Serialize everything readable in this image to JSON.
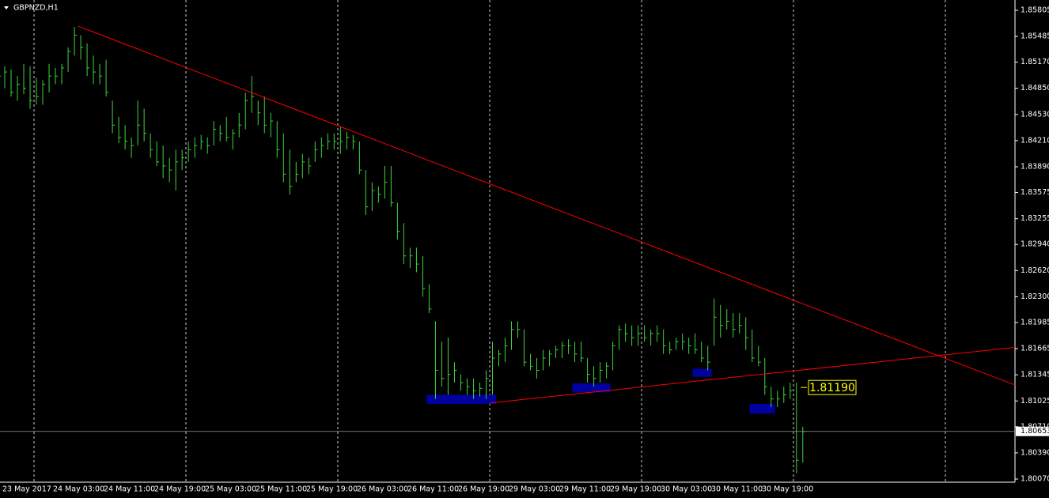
{
  "chart_data": {
    "type": "ohlc",
    "title": "GBPNZD,H1",
    "bar_color": "#3fd43f",
    "background": "#000000",
    "axis_color": "#ffffff",
    "ylim": [
      1.8007,
      1.85805
    ],
    "xlim": [
      0.25,
      160.5
    ],
    "yticks": [
      1.85805,
      1.85485,
      {
        "value": 1.8517,
        "label": "1.85170"
      },
      {
        "value": 1.8485,
        "label": "1.84850"
      },
      {
        "value": 1.8453,
        "label": "1.84530"
      },
      {
        "value": 1.8421,
        "label": "1.84210"
      },
      {
        "value": 1.8389,
        "label": "1.83890"
      },
      1.83575,
      1.83255,
      {
        "value": 1.8294,
        "label": "1.82940"
      },
      {
        "value": 1.8262,
        "label": "1.82620"
      },
      {
        "value": 1.823,
        "label": "1.82300"
      },
      1.81985,
      1.81665,
      1.81345,
      1.81025,
      {
        "value": 1.8071,
        "label": "1.80710"
      },
      {
        "value": 1.8039,
        "label": "1.80390"
      },
      {
        "value": 1.8007,
        "label": "1.80070"
      }
    ],
    "x_labels": [
      "23 May 2017",
      "24 May 03:00",
      "24 May 11:00",
      "24 May 19:00",
      "25 May 03:00",
      "25 May 11:00",
      "25 May 19:00",
      "26 May 03:00",
      "26 May 11:00",
      "26 May 19:00",
      "29 May 03:00",
      "29 May 11:00",
      "29 May 19:00",
      "30 May 03:00",
      "30 May 11:00",
      "30 May 19:00"
    ],
    "bars": [
      [
        1.8515,
        1.849,
        1.85
      ],
      [
        1.8512,
        1.8485,
        1.8505
      ],
      [
        1.8508,
        1.8475,
        1.848
      ],
      [
        1.85,
        1.847,
        1.849
      ],
      [
        1.8515,
        1.8478,
        1.8485
      ],
      [
        1.8512,
        1.846,
        1.847
      ],
      [
        1.8498,
        1.8465,
        1.8475
      ],
      [
        1.8495,
        1.8465,
        1.849
      ],
      [
        1.8515,
        1.848,
        1.85
      ],
      [
        1.851,
        1.849,
        1.85
      ],
      [
        1.8515,
        1.849,
        1.851
      ],
      [
        1.8535,
        1.8505,
        1.853
      ],
      [
        1.856,
        1.8525,
        1.855
      ],
      [
        1.855,
        1.852,
        1.8535
      ],
      [
        1.854,
        1.85,
        1.851
      ],
      [
        1.8525,
        1.849,
        1.8505
      ],
      [
        1.8515,
        1.849,
        1.85
      ],
      [
        1.852,
        1.8475,
        1.848
      ],
      [
        1.847,
        1.843,
        1.844
      ],
      [
        1.845,
        1.8418,
        1.8425
      ],
      [
        1.844,
        1.841,
        1.842
      ],
      [
        1.8425,
        1.84,
        1.8415
      ],
      [
        1.847,
        1.8415,
        1.844
      ],
      [
        1.846,
        1.842,
        1.843
      ],
      [
        1.843,
        1.84,
        1.841
      ],
      [
        1.842,
        1.839,
        1.8395
      ],
      [
        1.8415,
        1.8375,
        1.839
      ],
      [
        1.84,
        1.837,
        1.8385
      ],
      [
        1.841,
        1.836,
        1.8395
      ],
      [
        1.841,
        1.8385,
        1.84
      ],
      [
        1.842,
        1.8395,
        1.841
      ],
      [
        1.8425,
        1.84,
        1.8415
      ],
      [
        1.8428,
        1.841,
        1.842
      ],
      [
        1.8425,
        1.8405,
        1.8415
      ],
      [
        1.8445,
        1.8415,
        1.8435
      ],
      [
        1.844,
        1.842,
        1.843
      ],
      [
        1.845,
        1.842,
        1.8425
      ],
      [
        1.8435,
        1.841,
        1.843
      ],
      [
        1.8455,
        1.8425,
        1.844
      ],
      [
        1.848,
        1.8435,
        1.847
      ],
      [
        1.85,
        1.8455,
        1.8475
      ],
      [
        1.847,
        1.844,
        1.8455
      ],
      [
        1.8475,
        1.843,
        1.844
      ],
      [
        1.8455,
        1.8425,
        1.8445
      ],
      [
        1.8445,
        1.84,
        1.841
      ],
      [
        1.843,
        1.837,
        1.838
      ],
      [
        1.841,
        1.8355,
        1.8365
      ],
      [
        1.8395,
        1.837,
        1.838
      ],
      [
        1.8405,
        1.8375,
        1.8395
      ],
      [
        1.84,
        1.838,
        1.839
      ],
      [
        1.842,
        1.8395,
        1.841
      ],
      [
        1.8425,
        1.84,
        1.8415
      ],
      [
        1.843,
        1.841,
        1.842
      ],
      [
        1.843,
        1.841,
        1.842
      ],
      [
        1.8438,
        1.8405,
        1.842
      ],
      [
        1.8432,
        1.841,
        1.8425
      ],
      [
        1.8428,
        1.841,
        1.842
      ],
      [
        1.842,
        1.838,
        1.8385
      ],
      [
        1.8385,
        1.833,
        1.834
      ],
      [
        1.837,
        1.8335,
        1.836
      ],
      [
        1.8365,
        1.8345,
        1.8355
      ],
      [
        1.839,
        1.835,
        1.837
      ],
      [
        1.839,
        1.834,
        1.8345
      ],
      [
        1.8345,
        1.83,
        1.831
      ],
      [
        1.832,
        1.827,
        1.828
      ],
      [
        1.829,
        1.8265,
        1.828
      ],
      [
        1.829,
        1.826,
        1.827
      ],
      [
        1.828,
        1.823,
        1.824
      ],
      [
        1.8245,
        1.821,
        1.8215
      ],
      [
        1.82,
        1.8105,
        1.814
      ],
      [
        1.8175,
        1.812,
        1.813
      ],
      [
        1.818,
        1.811,
        1.8135
      ],
      [
        1.815,
        1.8125,
        1.814
      ],
      [
        1.8135,
        1.8115,
        1.8125
      ],
      [
        1.813,
        1.811,
        1.812
      ],
      [
        1.813,
        1.8105,
        1.8115
      ],
      [
        1.8125,
        1.8108,
        1.8118
      ],
      [
        1.814,
        1.8105,
        1.813
      ],
      [
        1.8175,
        1.811,
        1.8155
      ],
      [
        1.8165,
        1.8145,
        1.816
      ],
      [
        1.818,
        1.815,
        1.817
      ],
      [
        1.82,
        1.8165,
        1.819
      ],
      [
        1.82,
        1.818,
        1.819
      ],
      [
        1.819,
        1.8145,
        1.815
      ],
      [
        1.816,
        1.814,
        1.8145
      ],
      [
        1.8155,
        1.813,
        1.814
      ],
      [
        1.8165,
        1.814,
        1.8155
      ],
      [
        1.8165,
        1.8145,
        1.816
      ],
      [
        1.817,
        1.8155,
        1.8165
      ],
      [
        1.8175,
        1.8155,
        1.817
      ],
      [
        1.8178,
        1.816,
        1.817
      ],
      [
        1.8175,
        1.815,
        1.816
      ],
      [
        1.8175,
        1.815,
        1.8155
      ],
      [
        1.8155,
        1.8125,
        1.8135
      ],
      [
        1.8145,
        1.812,
        1.813
      ],
      [
        1.815,
        1.8125,
        1.814
      ],
      [
        1.815,
        1.813,
        1.8145
      ],
      [
        1.8175,
        1.814,
        1.817
      ],
      [
        1.8195,
        1.8165,
        1.819
      ],
      [
        1.8197,
        1.8175,
        1.8185
      ],
      [
        1.8195,
        1.817,
        1.818
      ],
      [
        1.8195,
        1.817,
        1.8185
      ],
      [
        1.8195,
        1.8175,
        1.818
      ],
      [
        1.819,
        1.817,
        1.8185
      ],
      [
        1.8195,
        1.8175,
        1.8185
      ],
      [
        1.819,
        1.816,
        1.817
      ],
      [
        1.8175,
        1.816,
        1.8165
      ],
      [
        1.818,
        1.8165,
        1.8175
      ],
      [
        1.8185,
        1.8165,
        1.8175
      ],
      [
        1.818,
        1.816,
        1.817
      ],
      [
        1.8185,
        1.816,
        1.8165
      ],
      [
        1.8175,
        1.815,
        1.8155
      ],
      [
        1.817,
        1.814,
        1.815
      ],
      [
        1.8228,
        1.817,
        1.8205
      ],
      [
        1.822,
        1.818,
        1.8195
      ],
      [
        1.8215,
        1.819,
        1.82
      ],
      [
        1.821,
        1.818,
        1.819
      ],
      [
        1.821,
        1.8185,
        1.8195
      ],
      [
        1.8205,
        1.8165,
        1.818
      ],
      [
        1.819,
        1.815,
        1.8155
      ],
      [
        1.817,
        1.8145,
        1.815
      ],
      [
        1.8155,
        1.811,
        1.812
      ],
      [
        1.812,
        1.8095,
        1.8105
      ],
      [
        1.8115,
        1.8095,
        1.8105
      ],
      [
        1.812,
        1.81,
        1.811
      ],
      [
        1.8125,
        1.8105,
        1.8115
      ],
      [
        1.8125,
        1.8014,
        1.803
      ],
      [
        1.8071,
        1.8027,
        1.8065
      ]
    ],
    "trendlines": [
      {
        "from": [
          12.6,
          1.8561
        ],
        "to": [
          160.5,
          1.8122
        ],
        "color": "#ff0000"
      },
      {
        "from": [
          77.6,
          1.81
        ],
        "to": [
          160.5,
          1.8168
        ],
        "color": "#ff0000"
      }
    ],
    "zones": [
      [
        67.6,
        78.6,
        1.811,
        1.8099
      ],
      [
        90.6,
        96.6,
        1.8124,
        1.8113
      ],
      [
        109.6,
        112.6,
        1.8142,
        1.8132
      ],
      [
        118.6,
        122.6,
        1.8099,
        1.8087
      ]
    ],
    "zone_color": "#0000a0",
    "price_line": 1.80653,
    "level_label": {
      "value": 1.8119,
      "label": "1.81190",
      "color": "#ffff00"
    }
  }
}
